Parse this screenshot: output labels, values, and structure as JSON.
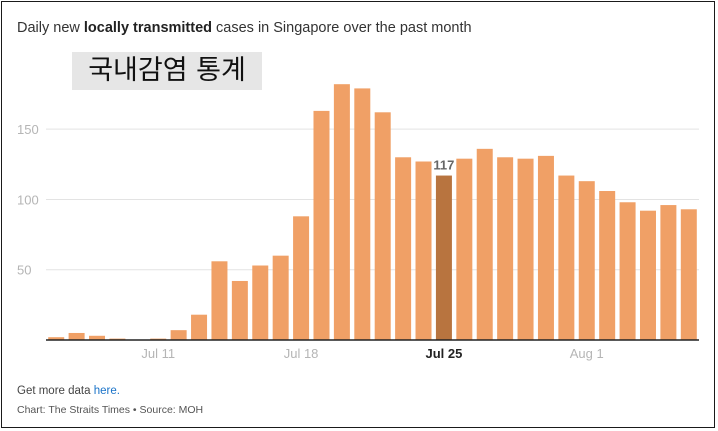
{
  "header": {
    "title_pre": "Daily new ",
    "title_bold": "locally transmitted",
    "title_post": " cases in Singapore over the past month"
  },
  "overlay_label": "국내감염 통계",
  "footer": {
    "more_pre": "Get more data ",
    "more_link": "here.",
    "source": "Chart: The Straits Times • Source: MOH"
  },
  "colors": {
    "bar": "#f0a066",
    "highlight": "#b8743f",
    "grid": "#e3e3e3",
    "axis": "#222222",
    "tick_label": "#b5b5b5",
    "link": "#1a73c8"
  },
  "chart_data": {
    "type": "bar",
    "title": "Daily new locally transmitted cases in Singapore over the past month",
    "xlabel": "",
    "ylabel": "",
    "ylim": [
      0,
      180
    ],
    "yticks": [
      50,
      100,
      150
    ],
    "x_ticks": [
      {
        "label": "Jul 11",
        "index": 5,
        "bold": false
      },
      {
        "label": "Jul 18",
        "index": 12,
        "bold": false
      },
      {
        "label": "Jul 25",
        "index": 19,
        "bold": true
      },
      {
        "label": "Aug 1",
        "index": 26,
        "bold": false
      }
    ],
    "values": [
      2,
      5,
      3,
      1,
      0,
      1,
      7,
      18,
      56,
      42,
      53,
      60,
      88,
      163,
      182,
      179,
      162,
      130,
      127,
      117,
      129,
      136,
      130,
      129,
      131,
      117,
      113,
      106,
      98,
      92,
      96,
      93
    ],
    "highlight_index": 19,
    "highlight_label": "117",
    "grid": true
  }
}
